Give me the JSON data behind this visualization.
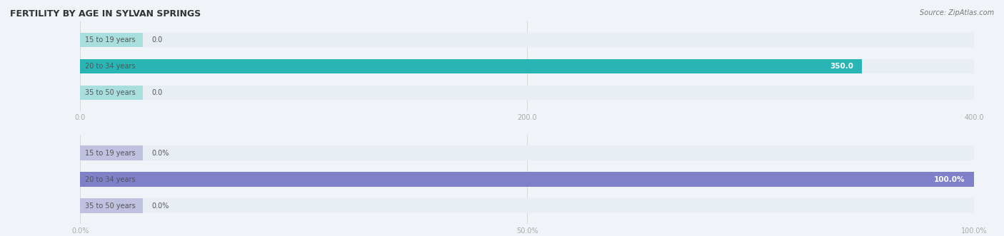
{
  "title": "FERTILITY BY AGE IN SYLVAN SPRINGS",
  "source_text": "Source: ZipAtlas.com",
  "top_chart": {
    "categories": [
      "15 to 19 years",
      "20 to 34 years",
      "35 to 50 years"
    ],
    "values": [
      0.0,
      350.0,
      0.0
    ],
    "xlim": [
      0,
      400
    ],
    "xticks": [
      0.0,
      200.0,
      400.0
    ],
    "xticklabels": [
      "0.0",
      "200.0",
      "400.0"
    ],
    "bar_color_main": "#2ab5b5",
    "bar_color_small": "#a8dede",
    "bar_bg_color": "#e8eef4"
  },
  "bottom_chart": {
    "categories": [
      "15 to 19 years",
      "20 to 34 years",
      "35 to 50 years"
    ],
    "values": [
      0.0,
      100.0,
      0.0
    ],
    "xlim": [
      0,
      100
    ],
    "xticks": [
      0.0,
      50.0,
      100.0
    ],
    "xticklabels": [
      "0.0%",
      "50.0%",
      "100.0%"
    ],
    "bar_color_main": "#8080c8",
    "bar_color_small": "#c0c0e0",
    "bar_bg_color": "#e8eef4"
  },
  "label_color": "#555555",
  "value_color_inside": "#ffffff",
  "value_color_outside": "#555555",
  "bar_height": 0.55,
  "fig_bg_color": "#f0f4f8"
}
